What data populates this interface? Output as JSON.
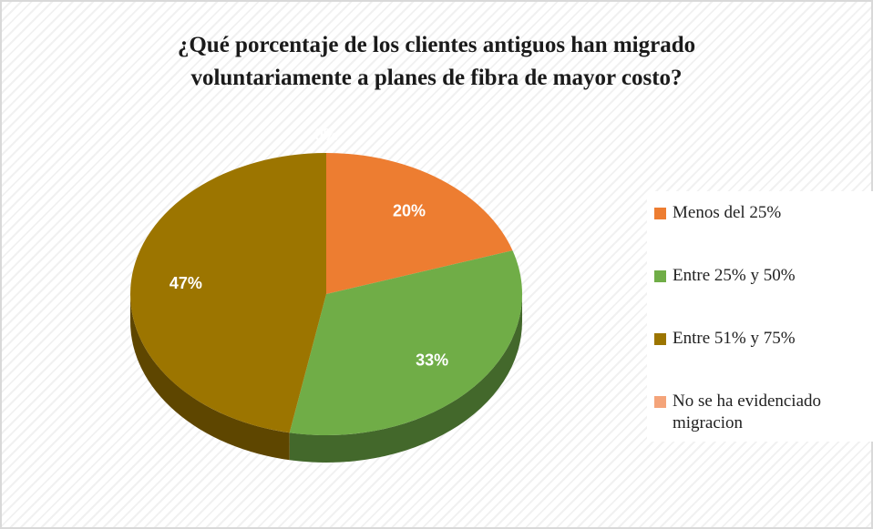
{
  "chart_data": {
    "type": "pie",
    "title": [
      "¿Qué porcentaje de los clientes antiguos han migrado",
      "voluntariamente a planes de fibra de mayor costo?"
    ],
    "categories": [
      "Menos del 25%",
      "Entre 25%  y 50%",
      "Entre 51%  y 75%",
      "No se ha evidenciado migracion"
    ],
    "values": [
      20,
      33,
      47,
      0
    ],
    "value_labels": [
      "20%",
      "33%",
      "47%",
      "0%"
    ],
    "colors": [
      "#ed7d31",
      "#70ad47",
      "#9c7500",
      "#f4a47a"
    ],
    "legend": "right"
  }
}
